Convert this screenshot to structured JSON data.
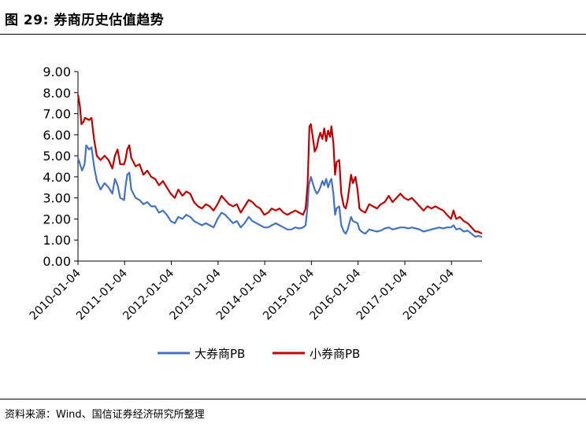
{
  "header": {
    "title": "图 29:  券商历史估值趋势"
  },
  "footer": {
    "source": "资料来源：Wind、国信证券经济研究所整理"
  },
  "chart_data": {
    "type": "line",
    "title": "",
    "xlabel": "",
    "ylabel": "",
    "ylim": [
      0,
      9
    ],
    "y_ticks": [
      "0.00",
      "1.00",
      "2.00",
      "3.00",
      "4.00",
      "5.00",
      "6.00",
      "7.00",
      "8.00",
      "9.00"
    ],
    "x_ticks": [
      "2010-01-04",
      "2011-01-04",
      "2012-01-04",
      "2013-01-04",
      "2014-01-04",
      "2015-01-04",
      "2016-01-04",
      "2017-01-04",
      "2018-01-04"
    ],
    "x_range": [
      "2010-01-04",
      "2018-08-31"
    ],
    "grid": false,
    "legend": "bottom",
    "series": [
      {
        "name": "大券商PB",
        "color": "#4472C4",
        "points": [
          [
            "2010-01-04",
            4.9
          ],
          [
            "2010-01-20",
            4.6
          ],
          [
            "2010-02-05",
            4.3
          ],
          [
            "2010-02-25",
            4.6
          ],
          [
            "2010-03-10",
            5.5
          ],
          [
            "2010-03-31",
            5.3
          ],
          [
            "2010-04-20",
            5.4
          ],
          [
            "2010-05-10",
            4.5
          ],
          [
            "2010-06-01",
            3.8
          ],
          [
            "2010-06-30",
            3.4
          ],
          [
            "2010-07-31",
            3.7
          ],
          [
            "2010-08-31",
            3.5
          ],
          [
            "2010-09-30",
            3.2
          ],
          [
            "2010-10-20",
            3.9
          ],
          [
            "2010-11-10",
            3.6
          ],
          [
            "2010-11-30",
            3.0
          ],
          [
            "2010-12-31",
            2.9
          ],
          [
            "2011-01-10",
            3.5
          ],
          [
            "2011-01-25",
            4.1
          ],
          [
            "2011-02-10",
            4.2
          ],
          [
            "2011-02-25",
            3.4
          ],
          [
            "2011-03-31",
            3.0
          ],
          [
            "2011-04-30",
            2.9
          ],
          [
            "2011-05-31",
            2.7
          ],
          [
            "2011-06-30",
            2.8
          ],
          [
            "2011-07-31",
            2.6
          ],
          [
            "2011-08-31",
            2.6
          ],
          [
            "2011-09-30",
            2.3
          ],
          [
            "2011-10-31",
            2.4
          ],
          [
            "2011-11-30",
            2.2
          ],
          [
            "2011-12-31",
            1.9
          ],
          [
            "2012-01-31",
            1.8
          ],
          [
            "2012-02-28",
            2.1
          ],
          [
            "2012-03-31",
            2.0
          ],
          [
            "2012-04-30",
            2.2
          ],
          [
            "2012-05-31",
            2.1
          ],
          [
            "2012-06-30",
            1.9
          ],
          [
            "2012-07-31",
            1.8
          ],
          [
            "2012-08-31",
            1.7
          ],
          [
            "2012-09-30",
            1.8
          ],
          [
            "2012-10-31",
            1.7
          ],
          [
            "2012-11-30",
            1.6
          ],
          [
            "2012-12-31",
            2.0
          ],
          [
            "2013-01-31",
            2.3
          ],
          [
            "2013-02-28",
            2.2
          ],
          [
            "2013-03-31",
            2.0
          ],
          [
            "2013-04-30",
            1.8
          ],
          [
            "2013-05-31",
            1.9
          ],
          [
            "2013-06-30",
            1.6
          ],
          [
            "2013-07-31",
            1.8
          ],
          [
            "2013-08-31",
            2.1
          ],
          [
            "2013-09-30",
            1.9
          ],
          [
            "2013-10-31",
            1.8
          ],
          [
            "2013-11-30",
            1.7
          ],
          [
            "2013-12-31",
            1.6
          ],
          [
            "2014-01-31",
            1.6
          ],
          [
            "2014-02-28",
            1.7
          ],
          [
            "2014-03-31",
            1.8
          ],
          [
            "2014-04-30",
            1.7
          ],
          [
            "2014-05-31",
            1.6
          ],
          [
            "2014-06-30",
            1.5
          ],
          [
            "2014-07-31",
            1.5
          ],
          [
            "2014-08-31",
            1.6
          ],
          [
            "2014-09-30",
            1.55
          ],
          [
            "2014-10-31",
            1.6
          ],
          [
            "2014-11-20",
            1.7
          ],
          [
            "2014-12-05",
            2.6
          ],
          [
            "2014-12-15",
            3.6
          ],
          [
            "2014-12-31",
            4.0
          ],
          [
            "2015-01-15",
            3.7
          ],
          [
            "2015-01-30",
            3.4
          ],
          [
            "2015-02-15",
            3.2
          ],
          [
            "2015-02-28",
            3.3
          ],
          [
            "2015-03-15",
            3.5
          ],
          [
            "2015-03-31",
            3.8
          ],
          [
            "2015-04-15",
            3.6
          ],
          [
            "2015-04-30",
            3.9
          ],
          [
            "2015-05-15",
            3.5
          ],
          [
            "2015-05-31",
            3.8
          ],
          [
            "2015-06-10",
            3.9
          ],
          [
            "2015-06-25",
            3.2
          ],
          [
            "2015-07-08",
            2.2
          ],
          [
            "2015-07-20",
            2.5
          ],
          [
            "2015-08-10",
            2.6
          ],
          [
            "2015-08-26",
            1.7
          ],
          [
            "2015-09-15",
            1.4
          ],
          [
            "2015-09-30",
            1.3
          ],
          [
            "2015-10-15",
            1.5
          ],
          [
            "2015-11-10",
            2.1
          ],
          [
            "2015-11-25",
            1.9
          ],
          [
            "2015-12-31",
            1.8
          ],
          [
            "2016-01-15",
            1.5
          ],
          [
            "2016-01-31",
            1.4
          ],
          [
            "2016-02-29",
            1.3
          ],
          [
            "2016-03-31",
            1.5
          ],
          [
            "2016-04-30",
            1.45
          ],
          [
            "2016-05-31",
            1.4
          ],
          [
            "2016-06-30",
            1.45
          ],
          [
            "2016-07-31",
            1.55
          ],
          [
            "2016-08-31",
            1.6
          ],
          [
            "2016-09-30",
            1.5
          ],
          [
            "2016-10-31",
            1.55
          ],
          [
            "2016-11-30",
            1.6
          ],
          [
            "2016-12-31",
            1.6
          ],
          [
            "2017-01-31",
            1.55
          ],
          [
            "2017-02-28",
            1.6
          ],
          [
            "2017-03-31",
            1.55
          ],
          [
            "2017-04-30",
            1.5
          ],
          [
            "2017-05-31",
            1.4
          ],
          [
            "2017-06-30",
            1.45
          ],
          [
            "2017-07-31",
            1.5
          ],
          [
            "2017-08-31",
            1.55
          ],
          [
            "2017-09-30",
            1.6
          ],
          [
            "2017-10-31",
            1.55
          ],
          [
            "2017-11-30",
            1.6
          ],
          [
            "2017-12-31",
            1.6
          ],
          [
            "2018-01-20",
            1.7
          ],
          [
            "2018-02-10",
            1.5
          ],
          [
            "2018-03-10",
            1.55
          ],
          [
            "2018-04-10",
            1.4
          ],
          [
            "2018-05-10",
            1.45
          ],
          [
            "2018-06-10",
            1.3
          ],
          [
            "2018-07-10",
            1.15
          ],
          [
            "2018-07-31",
            1.2
          ],
          [
            "2018-08-31",
            1.15
          ]
        ]
      },
      {
        "name": "小券商PB",
        "color": "#C00000",
        "points": [
          [
            "2010-01-04",
            7.9
          ],
          [
            "2010-01-10",
            7.7
          ],
          [
            "2010-01-20",
            7.3
          ],
          [
            "2010-01-31",
            6.5
          ],
          [
            "2010-02-15",
            6.6
          ],
          [
            "2010-02-28",
            6.8
          ],
          [
            "2010-03-31",
            6.7
          ],
          [
            "2010-04-20",
            6.8
          ],
          [
            "2010-05-10",
            5.8
          ],
          [
            "2010-05-31",
            5.0
          ],
          [
            "2010-06-30",
            4.8
          ],
          [
            "2010-07-31",
            5.0
          ],
          [
            "2010-08-31",
            4.8
          ],
          [
            "2010-09-30",
            4.4
          ],
          [
            "2010-10-20",
            5.0
          ],
          [
            "2010-11-10",
            5.3
          ],
          [
            "2010-11-30",
            4.6
          ],
          [
            "2010-12-31",
            4.6
          ],
          [
            "2011-01-10",
            4.8
          ],
          [
            "2011-01-25",
            5.3
          ],
          [
            "2011-02-10",
            5.5
          ],
          [
            "2011-02-25",
            4.9
          ],
          [
            "2011-03-31",
            4.5
          ],
          [
            "2011-04-30",
            4.6
          ],
          [
            "2011-05-31",
            4.1
          ],
          [
            "2011-06-30",
            4.3
          ],
          [
            "2011-07-31",
            4.0
          ],
          [
            "2011-08-31",
            3.9
          ],
          [
            "2011-09-30",
            3.6
          ],
          [
            "2011-10-31",
            3.8
          ],
          [
            "2011-11-30",
            3.5
          ],
          [
            "2011-12-31",
            3.2
          ],
          [
            "2012-01-31",
            3.0
          ],
          [
            "2012-02-28",
            3.4
          ],
          [
            "2012-03-31",
            3.1
          ],
          [
            "2012-04-30",
            3.3
          ],
          [
            "2012-05-31",
            3.2
          ],
          [
            "2012-06-30",
            2.8
          ],
          [
            "2012-07-31",
            2.6
          ],
          [
            "2012-08-31",
            2.5
          ],
          [
            "2012-09-30",
            2.7
          ],
          [
            "2012-10-31",
            2.6
          ],
          [
            "2012-11-30",
            2.4
          ],
          [
            "2012-12-31",
            2.7
          ],
          [
            "2013-01-31",
            3.1
          ],
          [
            "2013-02-28",
            2.9
          ],
          [
            "2013-03-31",
            2.7
          ],
          [
            "2013-04-30",
            2.6
          ],
          [
            "2013-05-31",
            2.7
          ],
          [
            "2013-06-30",
            2.3
          ],
          [
            "2013-07-31",
            2.6
          ],
          [
            "2013-08-31",
            2.9
          ],
          [
            "2013-09-30",
            2.8
          ],
          [
            "2013-10-31",
            2.6
          ],
          [
            "2013-11-30",
            2.5
          ],
          [
            "2013-12-31",
            2.2
          ],
          [
            "2014-01-31",
            2.3
          ],
          [
            "2014-02-28",
            2.5
          ],
          [
            "2014-03-31",
            2.4
          ],
          [
            "2014-04-30",
            2.5
          ],
          [
            "2014-05-31",
            2.3
          ],
          [
            "2014-06-30",
            2.2
          ],
          [
            "2014-07-31",
            2.3
          ],
          [
            "2014-08-31",
            2.4
          ],
          [
            "2014-09-30",
            2.3
          ],
          [
            "2014-10-31",
            2.2
          ],
          [
            "2014-11-20",
            2.5
          ],
          [
            "2014-12-05",
            3.6
          ],
          [
            "2014-12-20",
            6.4
          ],
          [
            "2014-12-31",
            6.5
          ],
          [
            "2015-01-15",
            5.9
          ],
          [
            "2015-01-30",
            5.2
          ],
          [
            "2015-02-15",
            5.4
          ],
          [
            "2015-02-28",
            5.8
          ],
          [
            "2015-03-15",
            6.1
          ],
          [
            "2015-03-31",
            5.8
          ],
          [
            "2015-04-15",
            6.3
          ],
          [
            "2015-04-30",
            5.7
          ],
          [
            "2015-05-15",
            6.2
          ],
          [
            "2015-05-31",
            5.9
          ],
          [
            "2015-06-10",
            6.4
          ],
          [
            "2015-06-25",
            5.6
          ],
          [
            "2015-07-08",
            4.1
          ],
          [
            "2015-07-20",
            4.7
          ],
          [
            "2015-08-10",
            4.8
          ],
          [
            "2015-08-26",
            3.2
          ],
          [
            "2015-09-15",
            2.6
          ],
          [
            "2015-09-30",
            2.5
          ],
          [
            "2015-10-15",
            2.9
          ],
          [
            "2015-11-10",
            4.1
          ],
          [
            "2015-11-25",
            3.7
          ],
          [
            "2015-12-15",
            4.0
          ],
          [
            "2015-12-31",
            3.4
          ],
          [
            "2016-01-15",
            2.5
          ],
          [
            "2016-01-31",
            2.4
          ],
          [
            "2016-02-29",
            2.3
          ],
          [
            "2016-03-31",
            2.7
          ],
          [
            "2016-04-30",
            2.6
          ],
          [
            "2016-05-31",
            2.5
          ],
          [
            "2016-06-30",
            2.7
          ],
          [
            "2016-07-31",
            2.8
          ],
          [
            "2016-08-31",
            3.1
          ],
          [
            "2016-09-30",
            2.8
          ],
          [
            "2016-10-31",
            3.0
          ],
          [
            "2016-11-30",
            3.2
          ],
          [
            "2016-12-31",
            3.0
          ],
          [
            "2017-01-31",
            2.9
          ],
          [
            "2017-02-28",
            3.0
          ],
          [
            "2017-03-31",
            2.8
          ],
          [
            "2017-04-30",
            2.6
          ],
          [
            "2017-05-31",
            2.4
          ],
          [
            "2017-06-30",
            2.6
          ],
          [
            "2017-07-31",
            2.5
          ],
          [
            "2017-08-31",
            2.6
          ],
          [
            "2017-09-30",
            2.5
          ],
          [
            "2017-10-31",
            2.4
          ],
          [
            "2017-11-30",
            2.2
          ],
          [
            "2017-12-31",
            2.0
          ],
          [
            "2018-01-20",
            2.4
          ],
          [
            "2018-02-10",
            2.0
          ],
          [
            "2018-03-10",
            2.1
          ],
          [
            "2018-04-10",
            1.9
          ],
          [
            "2018-05-10",
            1.8
          ],
          [
            "2018-06-10",
            1.6
          ],
          [
            "2018-07-10",
            1.4
          ],
          [
            "2018-07-31",
            1.4
          ],
          [
            "2018-08-31",
            1.3
          ]
        ]
      }
    ]
  }
}
